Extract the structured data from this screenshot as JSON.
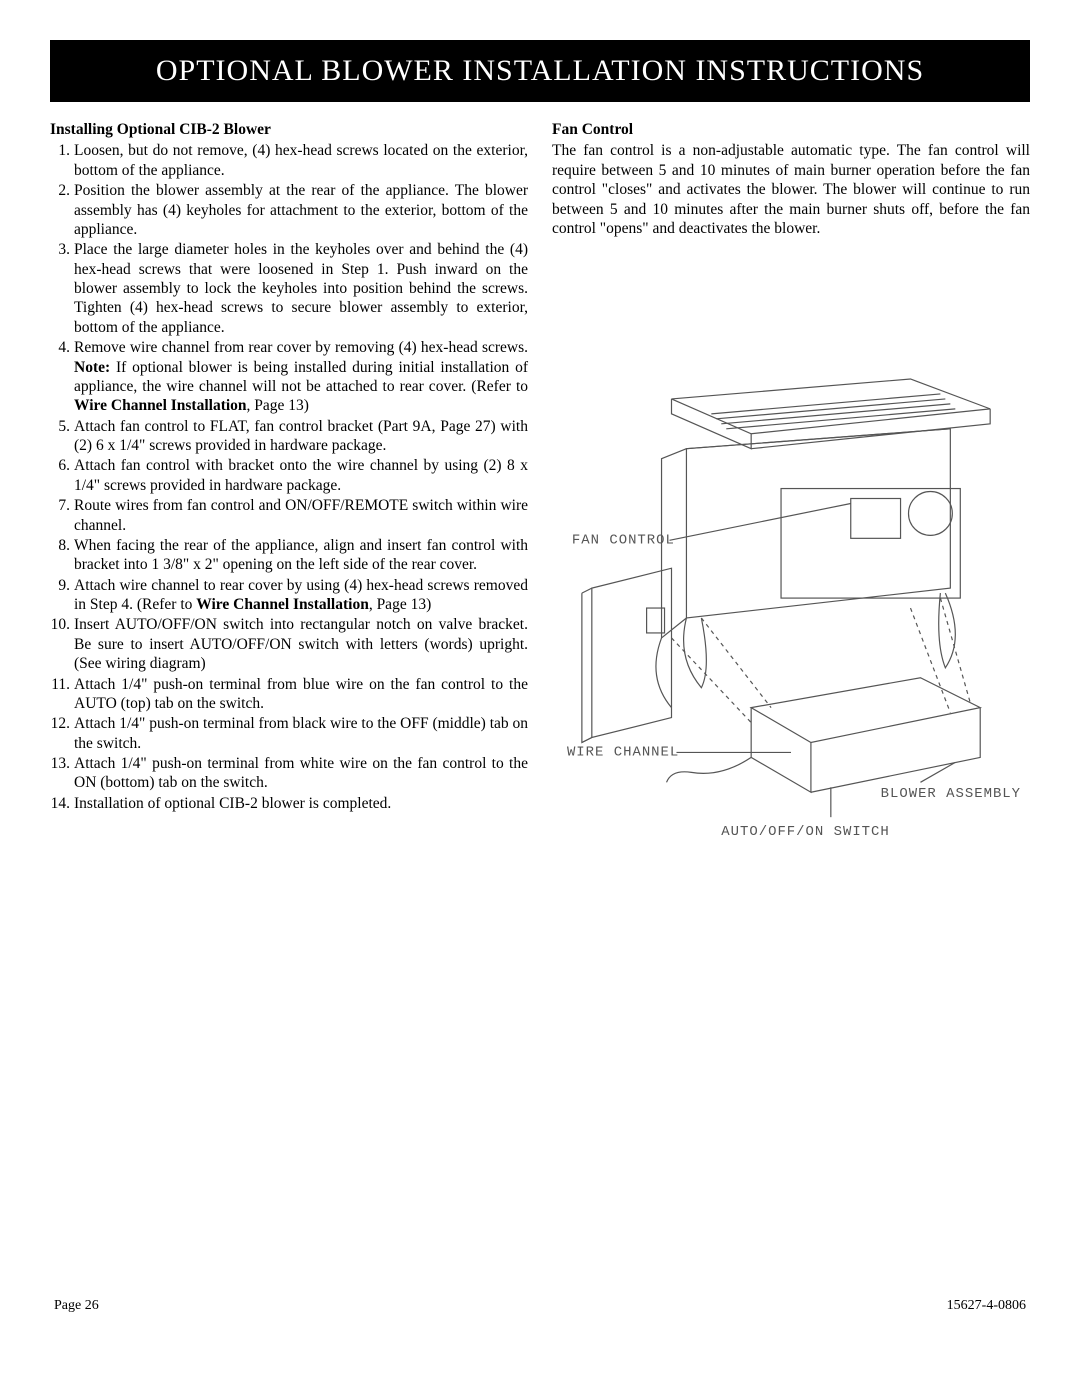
{
  "banner_title": "OPTIONAL BLOWER INSTALLATION INSTRUCTIONS",
  "left": {
    "heading": "Installing Optional CIB-2 Blower",
    "steps": [
      "Loosen, but do not remove, (4) hex-head screws located on the exterior, bottom of the appliance.",
      "Position the blower assembly at the rear of the appliance. The blower assembly has (4) keyholes for attachment to the exterior, bottom of the appliance.",
      "Place the large diameter holes in the keyholes over and behind the (4) hex-head screws that were loosened in Step 1. Push inward on the blower assembly to lock the keyholes into position behind the screws. Tighten (4) hex-head screws to secure blower assembly to exterior, bottom of the appliance.",
      "Remove wire channel from rear cover by removing (4) hex-head screws. <b>Note:</b> If optional blower is being installed during initial installation of appliance, the wire channel will not be attached to rear cover. (Refer to <b>Wire Channel Installation</b>, Page 13)",
      "Attach fan control to FLAT, fan control bracket (Part 9A, Page 27) with (2) 6 x 1/4\" screws provided in hardware package.",
      "Attach fan control with bracket onto the wire channel by using (2) 8 x 1/4\" screws provided in hardware package.",
      "Route wires from fan control and ON/OFF/REMOTE switch within wire channel.",
      "When facing the rear of the appliance, align and insert fan control with bracket into 1 3/8\" x 2\" opening on the left side of the rear cover.",
      "Attach wire channel to rear cover by using (4) hex-head screws removed in Step 4. (Refer to <b>Wire Channel Installation</b>, Page 13)",
      "Insert AUTO/OFF/ON switch into rectangular notch on valve bracket. Be sure to insert AUTO/OFF/ON switch with letters (words) upright. (See wiring diagram)",
      "Attach 1/4\" push-on terminal from blue wire on the fan control to the AUTO (top) tab on the switch.",
      "Attach 1/4\" push-on terminal from black wire to the OFF (middle) tab on the switch.",
      "Attach 1/4\" push-on terminal from white wire on the fan control to the ON (bottom) tab on the switch.",
      "Installation of optional CIB-2 blower is completed."
    ]
  },
  "right": {
    "heading": "Fan Control",
    "body": "The fan control is a non-adjustable automatic type.  The fan control will require between 5 and 10 minutes of main burner operation before the fan control \"closes\" and activates the blower. The blower will continue to run between 5 and 10 minutes after the main burner shuts off, before the fan control \"opens\" and deactivates the blower."
  },
  "diagram": {
    "labels": {
      "fan_control": "FAN CONTROL",
      "wire_channel": "WIRE CHANNEL",
      "blower_assembly": "BLOWER ASSEMBLY",
      "switch": "AUTO/OFF/ON SWITCH"
    },
    "stroke": "#555555",
    "stroke_width": 1.2
  },
  "footer": {
    "left": "Page 26",
    "right": "15627-4-0806"
  }
}
